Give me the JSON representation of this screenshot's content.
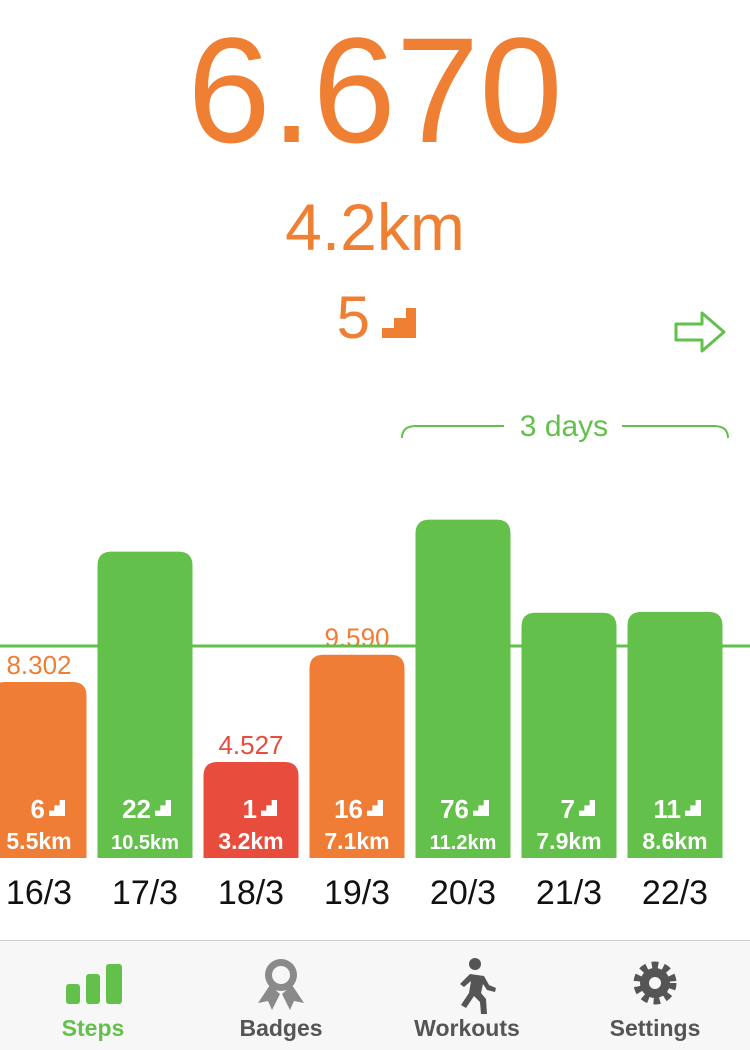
{
  "summary": {
    "steps": "6.670",
    "distance": "4.2km",
    "floors": "5"
  },
  "streak": "3 days",
  "chart_data": {
    "type": "bar",
    "categories": [
      "16/3",
      "17/3",
      "18/3",
      "19/3",
      "20/3",
      "21/3",
      "22/3"
    ],
    "values": [
      8302,
      14450,
      4527,
      9590,
      15960,
      11570,
      11610
    ],
    "value_labels": [
      "8.302",
      null,
      "4.527",
      "9.590",
      null,
      null,
      null
    ],
    "floors": [
      "6",
      "22",
      "1",
      "16",
      "76",
      "7",
      "11"
    ],
    "distances": [
      "5.5km",
      "10.5km",
      "3.2km",
      "7.1km",
      "11.2km",
      "7.9km",
      "8.6km"
    ],
    "colors": [
      "#ef7d35",
      "#63c04b",
      "#e84c3d",
      "#ef7d35",
      "#63c04b",
      "#63c04b",
      "#63c04b"
    ],
    "goal": 10000,
    "goal_color": "#63c04b",
    "ylim": [
      0,
      20000
    ]
  },
  "tabs": [
    {
      "label": "Steps"
    },
    {
      "label": "Badges"
    },
    {
      "label": "Workouts"
    },
    {
      "label": "Settings"
    }
  ]
}
